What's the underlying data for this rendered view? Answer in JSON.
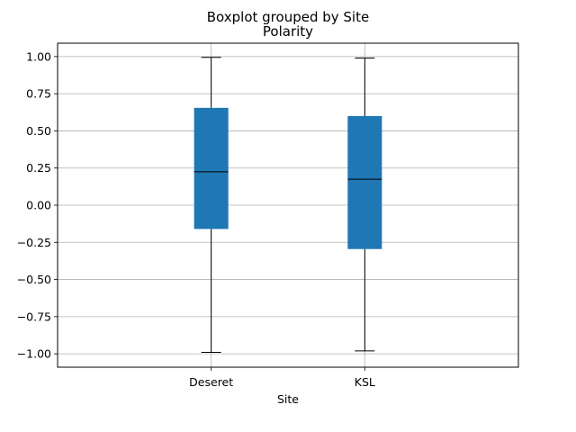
{
  "chart_data": {
    "type": "box",
    "suptitle": "Boxplot grouped by Site",
    "title": "Polarity",
    "xlabel": "Site",
    "ylabel": "",
    "ylim": [
      -1.09,
      1.09
    ],
    "yticks": [
      -1.0,
      -0.75,
      -0.5,
      -0.25,
      0.0,
      0.25,
      0.5,
      0.75,
      1.0
    ],
    "ytick_labels": [
      "−1.00",
      "−0.75",
      "−0.50",
      "−0.25",
      "0.00",
      "0.25",
      "0.50",
      "0.75",
      "1.00"
    ],
    "grid": true,
    "categories": [
      "Deseret",
      "KSL"
    ],
    "boxes": [
      {
        "category": "Deseret",
        "whislo": -0.99,
        "q1": -0.16,
        "med": 0.225,
        "q3": 0.655,
        "whishi": 0.995
      },
      {
        "category": "KSL",
        "whislo": -0.98,
        "q1": -0.295,
        "med": 0.175,
        "q3": 0.6,
        "whishi": 0.99
      }
    ],
    "colors": {
      "box": "#1f77b4",
      "line": "#000000",
      "grid": "#b0b0b0"
    }
  }
}
